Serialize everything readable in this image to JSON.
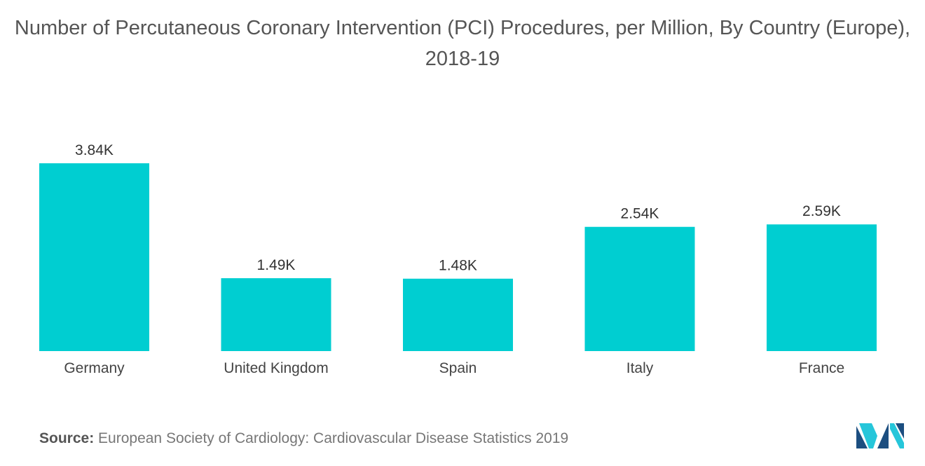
{
  "colors": {
    "bar": "#00CED1",
    "logo_dark": "#1C4E80",
    "logo_light": "#26C6DA"
  },
  "chart_data": {
    "type": "bar",
    "title": "Number of Percutaneous Coronary Intervention (PCI) Procedures, per Million, By Country (Europe), 2018-19",
    "categories": [
      "Germany",
      "United Kingdom",
      "Spain",
      "Italy",
      "France"
    ],
    "values": [
      3840,
      1490,
      1480,
      2540,
      2590
    ],
    "data_labels": [
      "3.84K",
      "1.49K",
      "1.48K",
      "2.54K",
      "2.59K"
    ],
    "xlabel": "",
    "ylabel": "",
    "ylim": [
      0,
      3840
    ],
    "grid": false,
    "legend": "none"
  },
  "source": {
    "label": "Source:",
    "text": "European Society of Cardiology: Cardiovascular Disease Statistics 2019"
  },
  "logo": {
    "icon": "mordor-intelligence-logo-icon"
  }
}
